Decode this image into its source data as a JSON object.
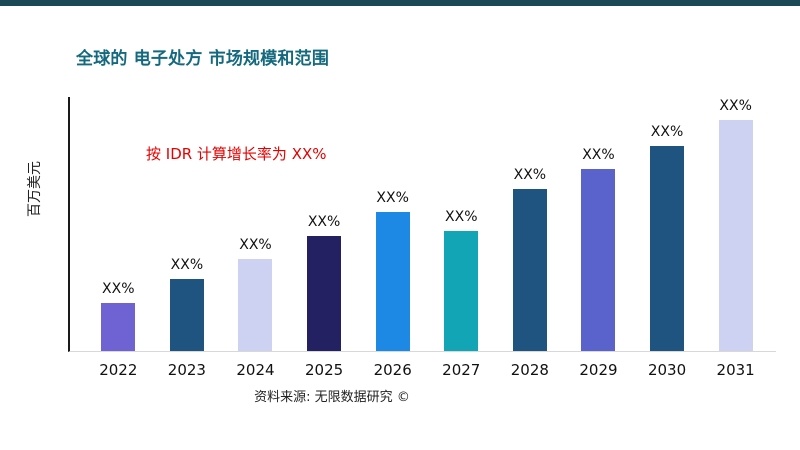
{
  "page": {
    "title": "全球的 电子处方 市场规模和范围",
    "source": "资料来源: 无限数据研究 ©"
  },
  "chart_data": {
    "type": "bar",
    "title": "全球的 电子处方 市场规模和范围",
    "ylabel": "百万美元",
    "xlabel": "",
    "annotation": "按 IDR 计算增长率为 XX%",
    "annotation_color": "#e60000",
    "categories": [
      "2022",
      "2023",
      "2024",
      "2025",
      "2026",
      "2027",
      "2028",
      "2029",
      "2030",
      "2031"
    ],
    "values": [
      21,
      31,
      40,
      50,
      60,
      52,
      70,
      79,
      89,
      100
    ],
    "bar_labels": [
      "XX%",
      "XX%",
      "XX%",
      "XX%",
      "XX%",
      "XX%",
      "XX%",
      "XX%",
      "XX%",
      "XX%"
    ],
    "bar_colors": [
      "#6f63d4",
      "#1f5380",
      "#cdd2f2",
      "#232162",
      "#1e88e5",
      "#12a5b6",
      "#1f5380",
      "#5a63cb",
      "#1f5380",
      "#cdd2f2"
    ],
    "ylim": [
      0,
      110
    ],
    "grid": false,
    "legend": "none"
  }
}
